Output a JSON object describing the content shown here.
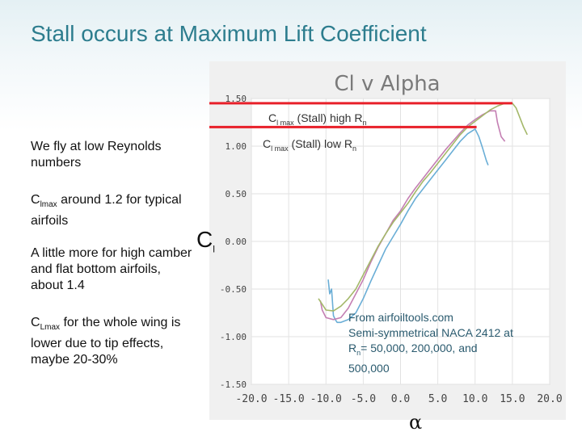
{
  "slide": {
    "title": "Stall occurs at Maximum Lift Coefficient",
    "bullets": {
      "b1": "We fly at low Reynolds numbers",
      "b2_main": "C",
      "b2_sub": "lmax",
      "b2_rest": " around 1.2 for typical airfoils",
      "b3": "A little more for high camber and flat bottom airfoils, about 1.4",
      "b4_main": "C",
      "b4_sub": "Lmax",
      "b4_rest": " for the whole wing is lower due to tip effects, maybe 20-30%"
    },
    "cl_main": "C",
    "cl_sub": "l",
    "alpha": "α",
    "labels": {
      "high_main": "C",
      "high_sub": "l max",
      "high_rest": " (Stall) high R",
      "high_sub2": "n",
      "low_main": "C",
      "low_sub": "l max",
      "low_rest": " (Stall) low R",
      "low_sub2": "n"
    },
    "source": {
      "l1": "From airfoiltools.com",
      "l2": "Semi-symmetrical NACA 2412 at",
      "l3_main": "R",
      "l3_sub": "n",
      "l3_rest": "=  50,000, 200,000, and",
      "l4": "500,000"
    }
  },
  "colors": {
    "title": "#2d7d8e",
    "stall_line": "#e8202a",
    "series_colors": [
      "#6aaed6",
      "#c47fb3",
      "#a4b86a"
    ]
  },
  "chart_data": {
    "type": "line",
    "title": "Cl v Alpha",
    "xlabel": "",
    "ylabel": "",
    "xlim": [
      -20,
      20
    ],
    "ylim": [
      -1.5,
      1.5
    ],
    "x_ticks": [
      "-20.0",
      "-15.0",
      "-10.0",
      "-5.0",
      "0.0",
      "5.0",
      "10.0",
      "15.0",
      "20.0"
    ],
    "y_ticks": [
      "1.50",
      "1.00",
      "0.50",
      "0.00",
      "-0.50",
      "-1.00",
      "-1.50"
    ],
    "grid": true,
    "stall_markers": [
      {
        "name": "Cl max (Stall) high Rn",
        "y": 1.45
      },
      {
        "name": "Cl max (Stall) low Rn",
        "y": 1.2
      }
    ],
    "series": [
      {
        "name": "Re 50,000",
        "x": [
          -9.7,
          -9.5,
          -9.25,
          -9.0,
          -8.75,
          -8.5,
          -8.0,
          -7.0,
          -6.0,
          -5.0,
          -4.0,
          -3.0,
          -2.0,
          -1.0,
          0.0,
          1.0,
          2.0,
          3.0,
          4.0,
          5.0,
          6.0,
          7.0,
          8.0,
          9.0,
          10.0,
          10.5,
          11.0,
          11.5,
          11.75
        ],
        "y": [
          -0.4,
          -0.55,
          -0.5,
          -0.78,
          -0.82,
          -0.85,
          -0.85,
          -0.82,
          -0.75,
          -0.6,
          -0.42,
          -0.25,
          -0.08,
          0.05,
          0.18,
          0.32,
          0.45,
          0.55,
          0.65,
          0.75,
          0.85,
          0.95,
          1.05,
          1.13,
          1.18,
          1.1,
          0.98,
          0.85,
          0.8
        ]
      },
      {
        "name": "Re 200,000",
        "x": [
          -10.75,
          -10.5,
          -10.0,
          -9.0,
          -8.0,
          -7.0,
          -6.0,
          -5.0,
          -4.0,
          -3.0,
          -2.0,
          -1.0,
          0.0,
          1.0,
          2.0,
          3.0,
          4.0,
          5.0,
          6.0,
          7.0,
          8.0,
          9.0,
          10.0,
          11.0,
          12.0,
          12.75,
          13.0,
          13.5,
          14.0
        ],
        "y": [
          -0.62,
          -0.72,
          -0.8,
          -0.82,
          -0.8,
          -0.7,
          -0.55,
          -0.4,
          -0.22,
          -0.06,
          0.08,
          0.22,
          0.32,
          0.45,
          0.56,
          0.66,
          0.76,
          0.86,
          0.96,
          1.05,
          1.14,
          1.22,
          1.28,
          1.33,
          1.37,
          1.37,
          1.25,
          1.1,
          1.05
        ]
      },
      {
        "name": "Re 500,000",
        "x": [
          -11.0,
          -10.0,
          -9.0,
          -8.0,
          -7.0,
          -6.0,
          -5.0,
          -4.0,
          -3.0,
          -2.0,
          -1.0,
          0.0,
          1.0,
          2.0,
          3.0,
          4.0,
          5.0,
          6.0,
          7.0,
          8.0,
          9.0,
          10.0,
          11.0,
          12.0,
          13.0,
          14.0,
          15.0,
          15.5,
          16.0,
          16.5,
          17.0
        ],
        "y": [
          -0.6,
          -0.72,
          -0.73,
          -0.68,
          -0.6,
          -0.5,
          -0.35,
          -0.2,
          -0.05,
          0.08,
          0.2,
          0.3,
          0.4,
          0.52,
          0.63,
          0.72,
          0.82,
          0.92,
          1.02,
          1.12,
          1.2,
          1.26,
          1.32,
          1.38,
          1.42,
          1.45,
          1.45,
          1.4,
          1.3,
          1.2,
          1.12
        ]
      }
    ]
  }
}
